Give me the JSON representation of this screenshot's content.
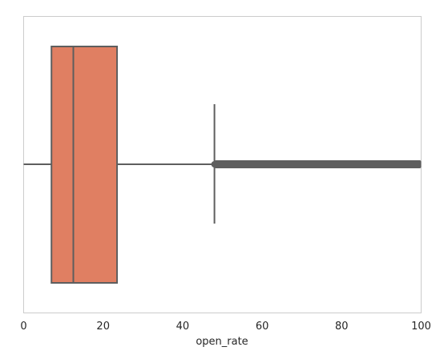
{
  "chart_data": {
    "type": "box",
    "title": "",
    "xlabel": "open_rate",
    "ylabel": "",
    "xlim": [
      0,
      100
    ],
    "xticks": [
      0,
      20,
      40,
      60,
      80,
      100
    ],
    "grid": false,
    "orientation": "horizontal",
    "box": {
      "whisker_low": 0,
      "q1": 7,
      "median": 12.5,
      "q3": 23.5,
      "whisker_high": 48,
      "outliers_range": [
        48,
        100
      ]
    },
    "colors": {
      "box_fill": "#e07f62",
      "line": "#5e5e5e",
      "frame": "#cccccc"
    }
  }
}
